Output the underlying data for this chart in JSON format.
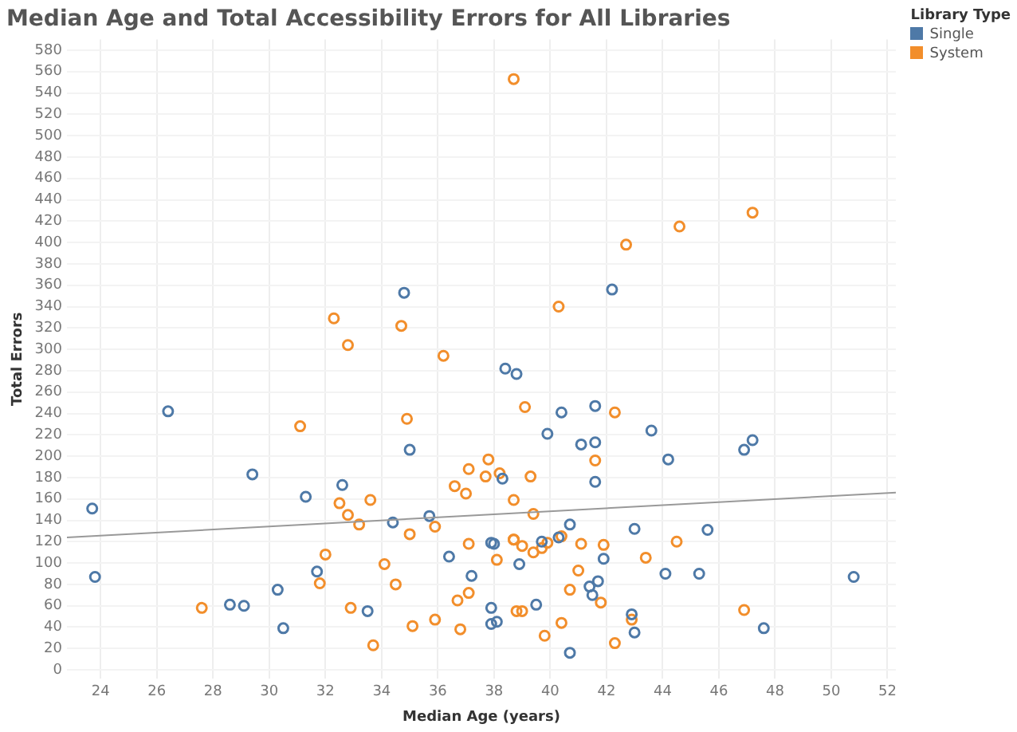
{
  "chart_data": {
    "type": "scatter",
    "title": "Median Age and Total Accessibility Errors for All Libraries",
    "xlabel": "Median Age (years)",
    "ylabel": "Total Errors",
    "legend_title": "Library Type",
    "legend": "top right",
    "grid": true,
    "marker": "circle",
    "xlim": [
      22.8,
      52.3
    ],
    "ylim": [
      -8,
      590
    ],
    "xticks": [
      24,
      26,
      28,
      30,
      32,
      34,
      36,
      38,
      40,
      42,
      44,
      46,
      48,
      50,
      52
    ],
    "yticks": [
      0,
      20,
      40,
      60,
      80,
      100,
      120,
      140,
      160,
      180,
      200,
      220,
      240,
      260,
      280,
      300,
      320,
      340,
      360,
      380,
      400,
      420,
      440,
      460,
      480,
      500,
      520,
      540,
      560,
      580
    ],
    "series": [
      {
        "name": "Single",
        "color": "#4e79a7",
        "x": [
          32.6,
          26.4,
          29.4,
          31.3,
          23.7,
          31.7,
          23.8,
          30.3,
          28.6,
          29.1,
          30.5,
          34.8,
          42.2,
          38.4,
          38.8,
          40.4,
          41.6,
          39.9,
          43.6,
          41.1,
          41.6,
          35.0,
          38.3,
          41.6,
          35.7,
          34.4,
          40.7,
          43.0,
          37.9,
          38.0,
          39.7,
          40.3,
          41.9,
          36.4,
          38.9,
          37.2,
          41.7,
          41.4,
          41.5,
          39.5,
          33.5,
          37.9,
          42.9,
          38.1,
          37.9,
          43.0,
          40.7,
          47.2,
          46.9,
          44.2,
          45.6,
          44.1,
          45.3,
          50.8,
          47.6
        ],
        "values": [
          173,
          242,
          183,
          162,
          151,
          92,
          87,
          75,
          61,
          60,
          39,
          353,
          356,
          282,
          277,
          241,
          247,
          221,
          224,
          211,
          213,
          206,
          179,
          176,
          144,
          138,
          136,
          132,
          119,
          118,
          120,
          124,
          104,
          106,
          99,
          88,
          83,
          78,
          70,
          61,
          55,
          58,
          52,
          45,
          43,
          35,
          16,
          215,
          206,
          197,
          131,
          90,
          90,
          87,
          39
        ]
      },
      {
        "name": "System",
        "color": "#f28e2b",
        "x": [
          32.3,
          32.8,
          31.1,
          32.5,
          32.8,
          32.0,
          31.8,
          27.6,
          32.9,
          40.3,
          34.7,
          36.2,
          39.1,
          42.3,
          34.9,
          41.6,
          37.8,
          37.1,
          38.2,
          37.7,
          39.3,
          36.6,
          37.0,
          33.6,
          38.7,
          39.4,
          33.2,
          35.9,
          35.0,
          37.1,
          38.7,
          38.7,
          39.0,
          39.9,
          39.4,
          39.7,
          40.4,
          41.1,
          41.9,
          43.4,
          38.1,
          34.1,
          41.0,
          34.5,
          40.7,
          37.1,
          36.7,
          41.8,
          38.8,
          39.0,
          42.9,
          35.9,
          35.1,
          36.8,
          40.4,
          39.8,
          33.7,
          42.3,
          44.5,
          46.9,
          38.7,
          42.7,
          44.6,
          47.2
        ],
        "values": [
          329,
          304,
          228,
          156,
          145,
          108,
          81,
          58,
          58,
          340,
          322,
          294,
          246,
          241,
          235,
          196,
          197,
          188,
          184,
          181,
          181,
          172,
          165,
          159,
          159,
          146,
          136,
          134,
          127,
          118,
          122,
          122,
          116,
          119,
          110,
          114,
          125,
          118,
          117,
          105,
          103,
          99,
          93,
          80,
          75,
          72,
          65,
          63,
          55,
          55,
          47,
          47,
          41,
          38,
          44,
          32,
          23,
          25,
          120,
          56,
          553,
          398,
          415,
          428
        ]
      },
      {
        "type": "line",
        "color": "#999999",
        "marker": "none",
        "x": [
          22.8,
          52.3
        ],
        "values": [
          124,
          166
        ]
      }
    ]
  }
}
